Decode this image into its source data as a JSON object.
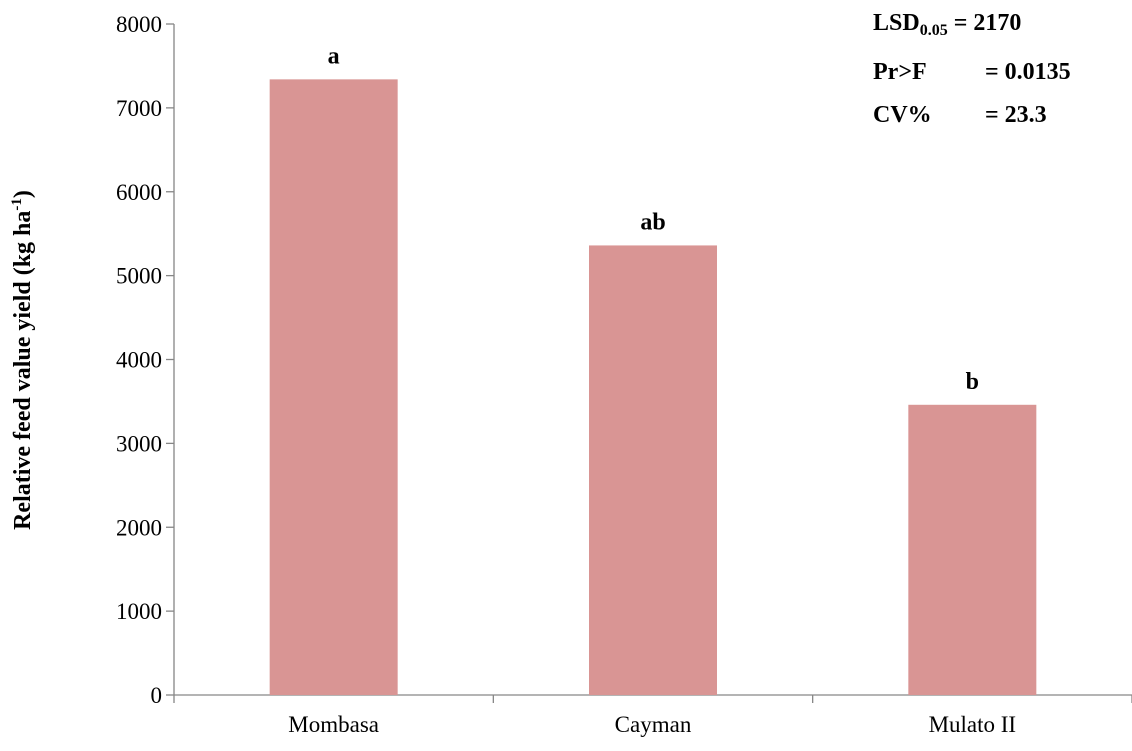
{
  "chart_data": {
    "type": "bar",
    "categories": [
      "Mombasa",
      "Cayman",
      "Mulato II"
    ],
    "values": [
      7340,
      5360,
      3460
    ],
    "data_labels": [
      "a",
      "ab",
      "b"
    ],
    "ylabel_main": "Relative feed value yield (kg  ha",
    "ylabel_sup": "-1",
    "ylabel_close": ")",
    "ylim": [
      0,
      8000
    ],
    "yticks": [
      0,
      1000,
      2000,
      3000,
      4000,
      5000,
      6000,
      7000,
      8000
    ],
    "bar_color": "#d99594",
    "grid": false,
    "legend": false,
    "annotations": {
      "lsd_label": "LSD",
      "lsd_sub": "0.05",
      "lsd_value": " = 2170",
      "pr_label": "Pr>F",
      "pr_value": "= 0.0135",
      "cv_label": "CV%",
      "cv_value": "= 23.3"
    }
  }
}
